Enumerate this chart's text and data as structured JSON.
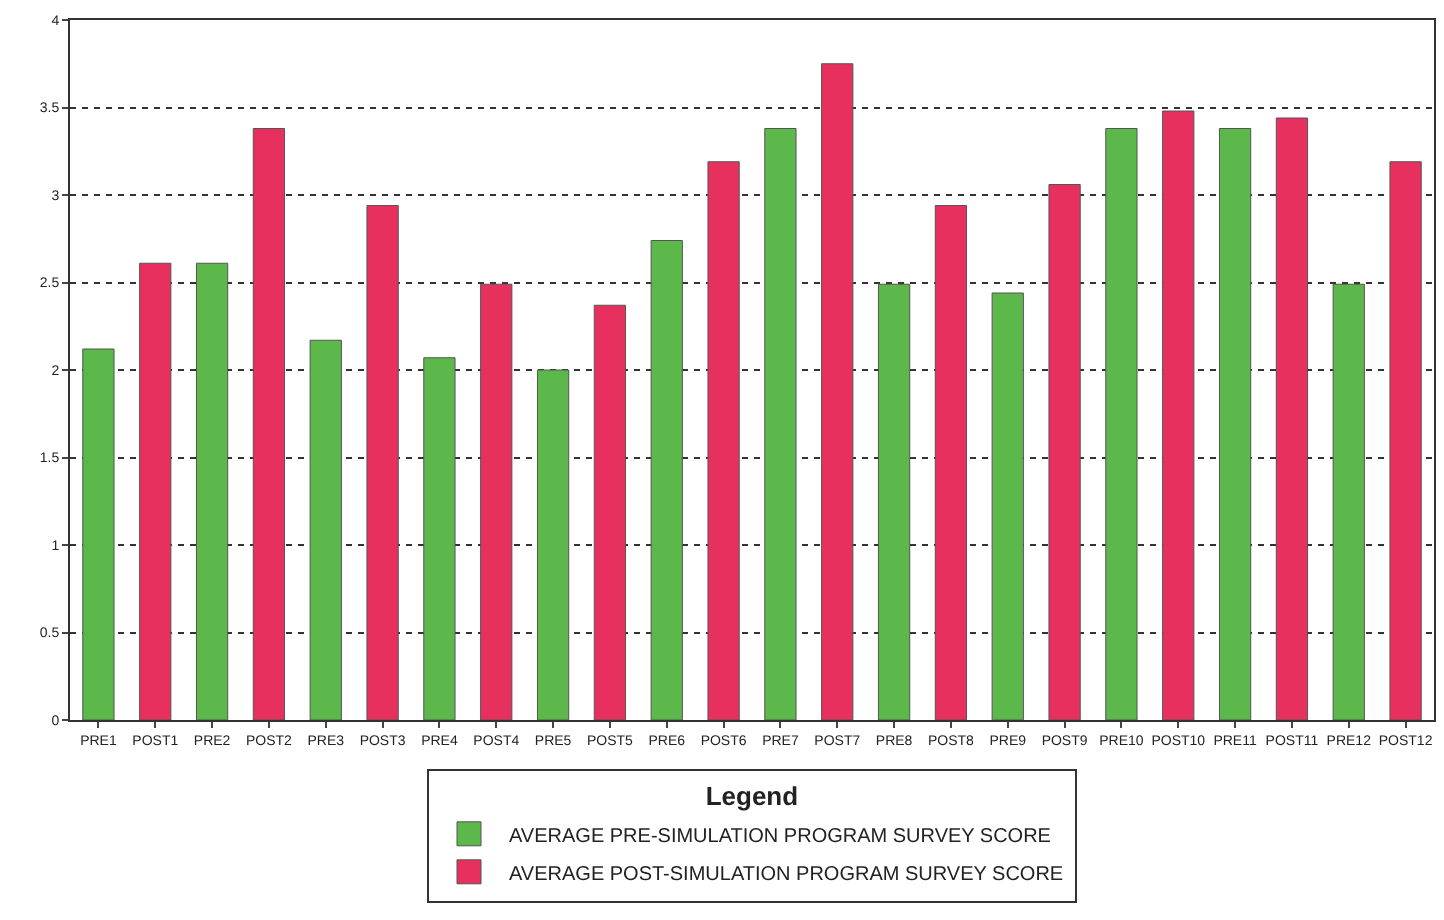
{
  "chart_data": {
    "type": "bar",
    "categories": [
      "PRE1",
      "POST1",
      "PRE2",
      "POST2",
      "PRE3",
      "POST3",
      "PRE4",
      "POST4",
      "PRE5",
      "POST5",
      "PRE6",
      "POST6",
      "PRE7",
      "POST7",
      "PRE8",
      "POST8",
      "PRE9",
      "POST9",
      "PRE10",
      "POST10",
      "PRE11",
      "POST11",
      "PRE12",
      "POST12"
    ],
    "series": [
      {
        "name": "AVERAGE PRE-SIMULATION PROGRAM SURVEY SCORE",
        "color": "#5cb84a",
        "values": [
          2.12,
          null,
          2.61,
          null,
          2.17,
          null,
          2.07,
          null,
          2.0,
          null,
          2.74,
          null,
          3.38,
          null,
          2.49,
          null,
          2.44,
          null,
          3.38,
          null,
          3.38,
          null,
          2.49,
          null
        ]
      },
      {
        "name": "AVERAGE POST-SIMULATION PROGRAM SURVEY SCORE",
        "color": "#e8305e",
        "values": [
          null,
          2.61,
          null,
          3.38,
          null,
          2.94,
          null,
          2.49,
          null,
          2.37,
          null,
          3.19,
          null,
          3.75,
          null,
          2.94,
          null,
          3.06,
          null,
          3.48,
          null,
          3.44,
          null,
          3.19
        ]
      }
    ],
    "legend_title": "Legend",
    "legend": "bottom",
    "ylim": [
      0,
      4
    ],
    "yticks": [
      0,
      0.5,
      1,
      1.5,
      2,
      2.5,
      3,
      3.5,
      4
    ],
    "grid": "y"
  }
}
